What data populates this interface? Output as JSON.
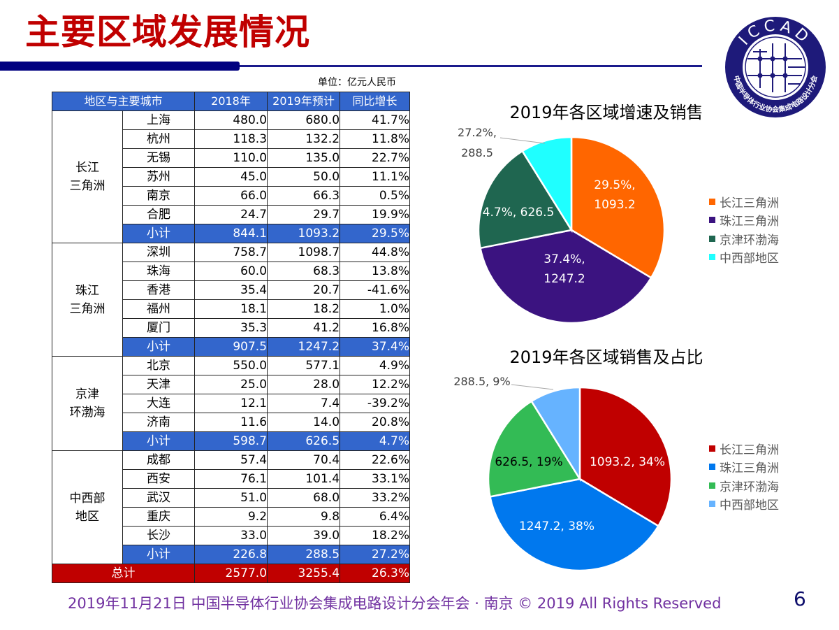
{
  "header": {
    "title": "主要区域发展情况",
    "unit_label": "单位：亿元人民币"
  },
  "logo": {
    "text": "ICCAD",
    "ring_text": "中国半导体行业协会集成电路设计分会"
  },
  "table": {
    "headers": [
      "地区与主要城市",
      "2018年",
      "2019年预计",
      "同比增长"
    ],
    "groups": [
      {
        "region": "长江\n三角洲",
        "region_lines": [
          "长江",
          "三角洲"
        ],
        "rows": [
          {
            "city": "上海",
            "y2018": "480.0",
            "y2019": "680.0",
            "growth": "41.7%"
          },
          {
            "city": "杭州",
            "y2018": "118.3",
            "y2019": "132.2",
            "growth": "11.8%"
          },
          {
            "city": "无锡",
            "y2018": "110.0",
            "y2019": "135.0",
            "growth": "22.7%"
          },
          {
            "city": "苏州",
            "y2018": "45.0",
            "y2019": "50.0",
            "growth": "11.1%"
          },
          {
            "city": "南京",
            "y2018": "66.0",
            "y2019": "66.3",
            "growth": "0.5%"
          },
          {
            "city": "合肥",
            "y2018": "24.7",
            "y2019": "29.7",
            "growth": "19.9%"
          }
        ],
        "subtotal": {
          "label": "小计",
          "y2018": "844.1",
          "y2019": "1093.2",
          "growth": "29.5%"
        }
      },
      {
        "region_lines": [
          "珠江",
          "三角洲"
        ],
        "rows": [
          {
            "city": "深圳",
            "y2018": "758.7",
            "y2019": "1098.7",
            "growth": "44.8%"
          },
          {
            "city": "珠海",
            "y2018": "60.0",
            "y2019": "68.3",
            "growth": "13.8%"
          },
          {
            "city": "香港",
            "y2018": "35.4",
            "y2019": "20.7",
            "growth": "-41.6%"
          },
          {
            "city": "福州",
            "y2018": "18.1",
            "y2019": "18.2",
            "growth": "1.0%"
          },
          {
            "city": "厦门",
            "y2018": "35.3",
            "y2019": "41.2",
            "growth": "16.8%"
          }
        ],
        "subtotal": {
          "label": "小计",
          "y2018": "907.5",
          "y2019": "1247.2",
          "growth": "37.4%"
        }
      },
      {
        "region_lines": [
          "京津",
          "环渤海"
        ],
        "rows": [
          {
            "city": "北京",
            "y2018": "550.0",
            "y2019": "577.1",
            "growth": "4.9%"
          },
          {
            "city": "天津",
            "y2018": "25.0",
            "y2019": "28.0",
            "growth": "12.2%"
          },
          {
            "city": "大连",
            "y2018": "12.1",
            "y2019": "7.4",
            "growth": "-39.2%"
          },
          {
            "city": "济南",
            "y2018": "11.6",
            "y2019": "14.0",
            "growth": "20.8%"
          }
        ],
        "subtotal": {
          "label": "小计",
          "y2018": "598.7",
          "y2019": "626.5",
          "growth": "4.7%"
        }
      },
      {
        "region_lines": [
          "中西部",
          "地区"
        ],
        "rows": [
          {
            "city": "成都",
            "y2018": "57.4",
            "y2019": "70.4",
            "growth": "22.6%"
          },
          {
            "city": "西安",
            "y2018": "76.1",
            "y2019": "101.4",
            "growth": "33.1%"
          },
          {
            "city": "武汉",
            "y2018": "51.0",
            "y2019": "68.0",
            "growth": "33.2%"
          },
          {
            "city": "重庆",
            "y2018": "9.2",
            "y2019": "9.8",
            "growth": "6.4%"
          },
          {
            "city": "长沙",
            "y2018": "33.0",
            "y2019": "39.0",
            "growth": "18.2%"
          }
        ],
        "subtotal": {
          "label": "小计",
          "y2018": "226.8",
          "y2019": "288.5",
          "growth": "27.2%"
        }
      }
    ],
    "total": {
      "label": "总计",
      "y2018": "2577.0",
      "y2019": "3255.4",
      "growth": "26.3%"
    }
  },
  "chart_data": [
    {
      "type": "pie",
      "title": "2019年各区域增速及销售",
      "categories": [
        "长江三角洲",
        "珠江三角洲",
        "京津环渤海",
        "中西部地区"
      ],
      "values": [
        1093.2,
        1247.2,
        626.5,
        288.5
      ],
      "growth": [
        "29.5%",
        "37.4%",
        "4.7%",
        "27.2%"
      ],
      "labels": [
        [
          "29.5%,",
          "1093.2"
        ],
        [
          "37.4%,",
          "1247.2"
        ],
        [
          "4.7%, 626.5"
        ],
        [
          "27.2%,",
          "288.5"
        ]
      ],
      "colors": [
        "#ff6600",
        "#3b1380",
        "#1f6650",
        "#1fffff"
      ],
      "label_colors": [
        "#ffffff",
        "#ffffff",
        "#ffffff",
        "#404040"
      ],
      "legend_position": "right"
    },
    {
      "type": "pie",
      "title": "2019年各区域销售及占比",
      "categories": [
        "长江三角洲",
        "珠江三角洲",
        "京津环渤海",
        "中西部地区"
      ],
      "values": [
        1093.2,
        1247.2,
        626.5,
        288.5
      ],
      "percent": [
        "34%",
        "38%",
        "19%",
        "9%"
      ],
      "labels": [
        [
          "1093.2, 34%"
        ],
        [
          "1247.2, 38%"
        ],
        [
          "626.5, 19%"
        ],
        [
          "288.5, 9%"
        ]
      ],
      "colors": [
        "#c00000",
        "#0078ee",
        "#33bb55",
        "#66b3ff"
      ],
      "label_colors": [
        "#ffffff",
        "#ffffff",
        "#000000",
        "#404040"
      ],
      "legend_position": "right"
    }
  ],
  "footer": {
    "text": "2019年11月21日 中国半导体行业协会集成电路设计分会年会 · 南京 © 2019 All Rights Reserved",
    "page_number": "6"
  }
}
